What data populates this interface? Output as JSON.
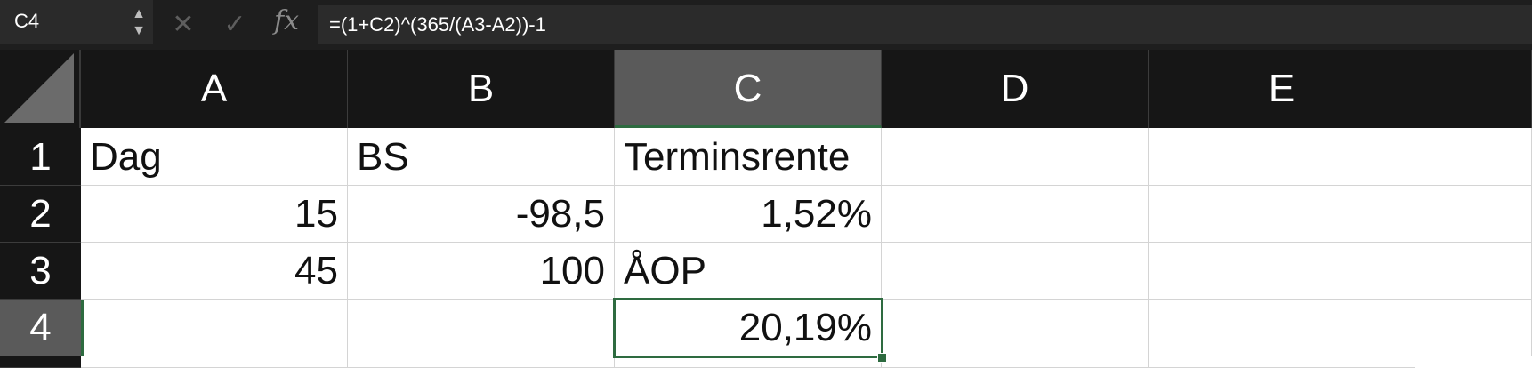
{
  "formula_bar": {
    "name_box": "C4",
    "cancel_icon": "close-icon",
    "confirm_icon": "check-icon",
    "fx_label": "fx",
    "formula": "=(1+C2)^(365/(A3-A2))-1"
  },
  "columns": [
    "A",
    "B",
    "C",
    "D",
    "E"
  ],
  "rows": [
    "1",
    "2",
    "3",
    "4"
  ],
  "cells": {
    "A1": "Dag",
    "B1": "BS",
    "C1": "Terminsrente",
    "A2": "15",
    "B2": "-98,5",
    "C2": "1,52%",
    "A3": "45",
    "B3": "100",
    "C3": "ÅOP",
    "C4": "20,19%"
  },
  "colors": {
    "selection": "#2e6b40",
    "header_bg": "#161616",
    "active_header_bg": "#5a5a5a"
  }
}
